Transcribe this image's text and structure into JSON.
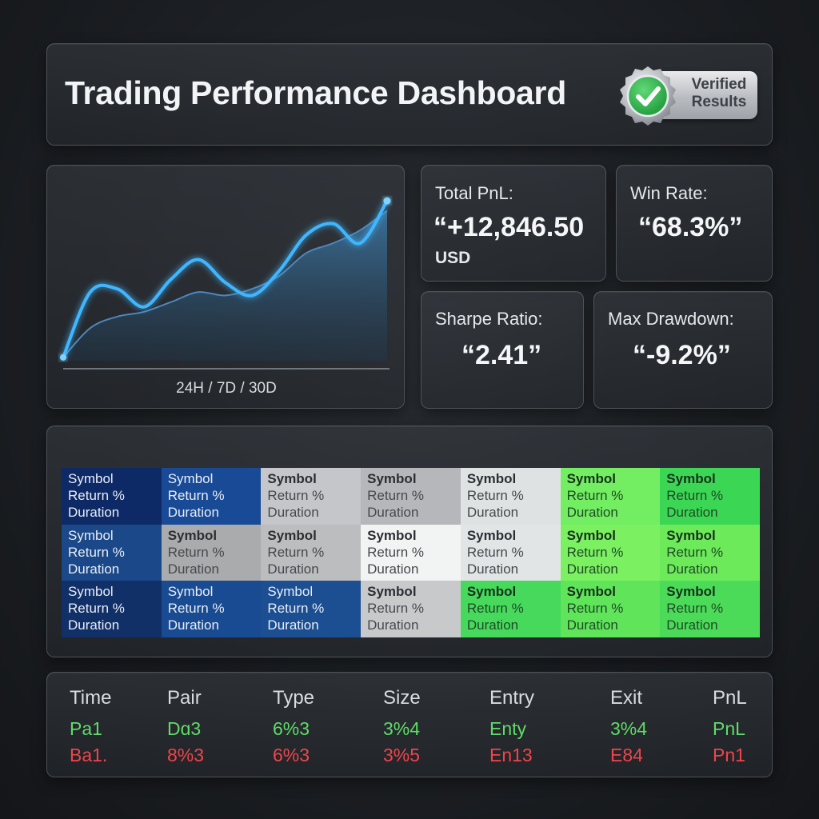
{
  "header": {
    "title": "Trading Performance Dashboard",
    "badge_line1": "Verified",
    "badge_line2": "Results",
    "badge_icon": "check-seal-icon",
    "badge_color": "#2fb64a"
  },
  "chart": {
    "range_label": "24H / 7D / 30D",
    "line_color": "#3fb6ff",
    "fill_color": "#2e5f86"
  },
  "chart_data": {
    "type": "area",
    "title": "",
    "xlabel": "24H / 7D / 30D",
    "ylabel": "",
    "grid": false,
    "series": [
      {
        "values": [
          0.02,
          0.42,
          0.44,
          0.33,
          0.5,
          0.62,
          0.48,
          0.4,
          0.55,
          0.77,
          0.84,
          0.72,
          0.98
        ]
      },
      {
        "values": [
          0.02,
          0.2,
          0.27,
          0.3,
          0.36,
          0.42,
          0.4,
          0.44,
          0.52,
          0.66,
          0.72,
          0.8,
          0.92
        ]
      }
    ],
    "ylim": [
      0,
      1
    ]
  },
  "stats": {
    "pnl": {
      "label": "Total PnL:",
      "value": "“+12,846.50",
      "unit": "USD"
    },
    "win_rate": {
      "label": "Win Rate:",
      "value": "“68.3%”"
    },
    "sharpe": {
      "label": "Sharpe Ratio:",
      "value": "“2.41”"
    },
    "drawdown": {
      "label": "Max Drawdown:",
      "value": "“-9.2%”"
    }
  },
  "heatmap": {
    "cell_lines": [
      "Symbol",
      "Return %",
      "Duration"
    ],
    "colors": [
      [
        "#0e2a66",
        "#184a96",
        "#c4c6c9",
        "#b5b7ba",
        "#dfe2e2",
        "#73ee62",
        "#3cd655"
      ],
      [
        "#1a4888",
        "#a9abad",
        "#bcbdbf",
        "#f2f3f3",
        "#e2e5e6",
        "#7bf061",
        "#6cea5a"
      ],
      [
        "#113068",
        "#194b92",
        "#1c4e92",
        "#c7c9cb",
        "#46d95c",
        "#5fe45a",
        "#4bdb58"
      ]
    ],
    "tones": [
      [
        "dark",
        "dark",
        "light",
        "light",
        "light",
        "green",
        "green"
      ],
      [
        "dark",
        "light",
        "light",
        "light",
        "light",
        "green",
        "green"
      ],
      [
        "dark",
        "dark",
        "dark",
        "light",
        "green",
        "green",
        "green"
      ]
    ]
  },
  "trades": {
    "columns": [
      "Time",
      "Pair",
      "Type",
      "Size",
      "Entry",
      "Exit",
      "PnL"
    ],
    "rows": [
      [
        "Pa1",
        "Dɑ3",
        "6%3",
        "3%4",
        "Enty",
        "3%4",
        "PnL"
      ],
      [
        "Ba1.",
        "8%3",
        "6%3",
        "3%5",
        "En13",
        "E84",
        "Pn1"
      ]
    ],
    "win_color": "#5fdc68",
    "loss_color": "#f0454a"
  }
}
